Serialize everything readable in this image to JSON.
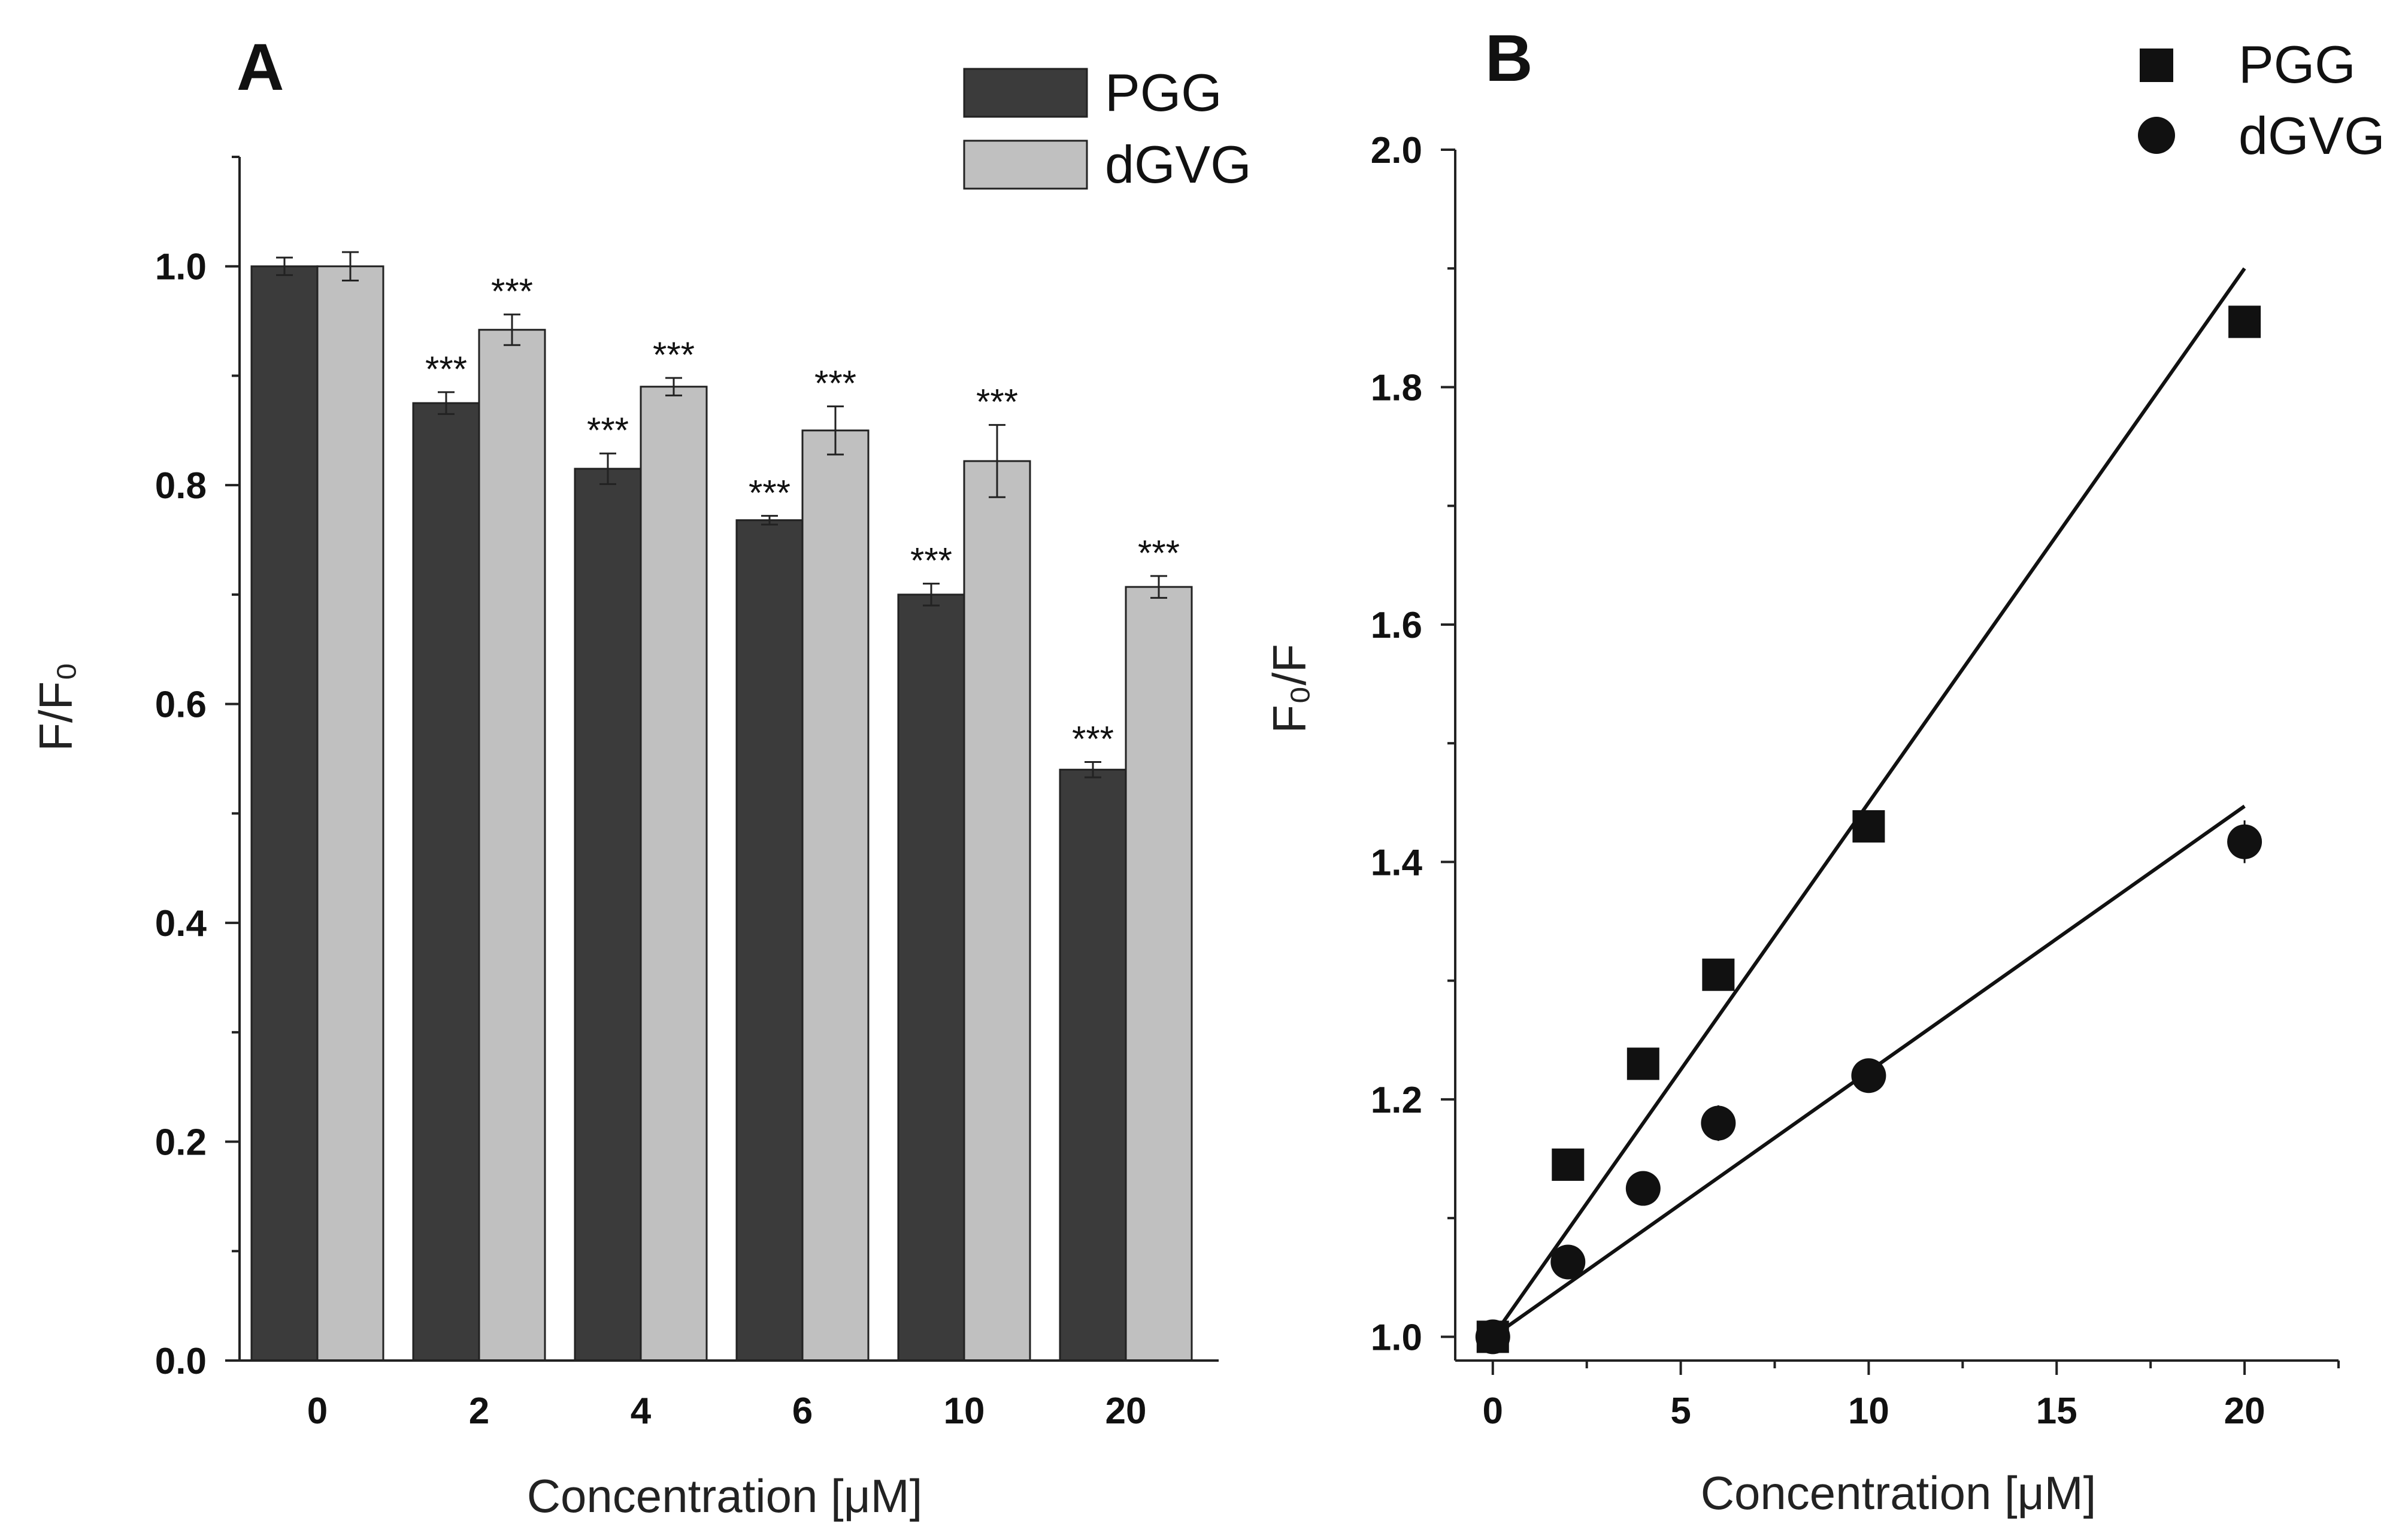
{
  "colors": {
    "pgg": "#3b3b3b",
    "dgvg": "#c0c0c0",
    "axis": "#222222"
  },
  "chart_data": [
    {
      "type": "bar",
      "panel_label": "A",
      "categories": [
        "0",
        "2",
        "4",
        "6",
        "10",
        "20"
      ],
      "series": [
        {
          "name": "PGG",
          "values": [
            1.0,
            0.875,
            0.815,
            0.768,
            0.7,
            0.54
          ],
          "errors": [
            0.008,
            0.01,
            0.014,
            0.004,
            0.01,
            0.007
          ]
        },
        {
          "name": "dGVG",
          "values": [
            1.0,
            0.942,
            0.89,
            0.85,
            0.822,
            0.707
          ],
          "errors": [
            0.013,
            0.014,
            0.008,
            0.022,
            0.033,
            0.01
          ]
        }
      ],
      "significance": [
        [
          "",
          "***",
          "***",
          "***",
          "***",
          "***"
        ],
        [
          "",
          "***",
          "***",
          "***",
          "***",
          "***"
        ]
      ],
      "xlabel": "Concentration [μM]",
      "ylabel": "F/F₀",
      "ylim": [
        0,
        1.1
      ],
      "yticks": [
        "0.0",
        "0.2",
        "0.4",
        "0.6",
        "0.8",
        "1.0"
      ],
      "legend": "top-right",
      "grid": false
    },
    {
      "type": "scatter",
      "panel_label": "B",
      "series": [
        {
          "name": "PGG",
          "marker": "square",
          "x": [
            0,
            2,
            4,
            6,
            10,
            20
          ],
          "y": [
            1.0,
            1.145,
            1.23,
            1.305,
            1.43,
            1.855
          ],
          "fit": {
            "x": [
              0,
              20
            ],
            "y": [
              1.0,
              1.9
            ]
          }
        },
        {
          "name": "dGVG",
          "marker": "circle",
          "x": [
            0,
            2,
            4,
            6,
            10,
            20
          ],
          "y": [
            1.0,
            1.063,
            1.125,
            1.18,
            1.22,
            1.417
          ],
          "errors": [
            0.005,
            0.008,
            0.008,
            0.015,
            0.012,
            0.018
          ],
          "fit": {
            "x": [
              0,
              20
            ],
            "y": [
              1.0,
              1.447
            ]
          }
        }
      ],
      "xlabel": "Concentration [μM]",
      "ylabel": "F₀/F",
      "xlim": [
        -1,
        22.5
      ],
      "ylim": [
        0.98,
        2.0
      ],
      "xticks": [
        "0",
        "5",
        "10",
        "15",
        "20"
      ],
      "yticks": [
        "1.0",
        "1.2",
        "1.4",
        "1.6",
        "1.8",
        "2.0"
      ],
      "legend": "top-right",
      "grid": false
    }
  ]
}
